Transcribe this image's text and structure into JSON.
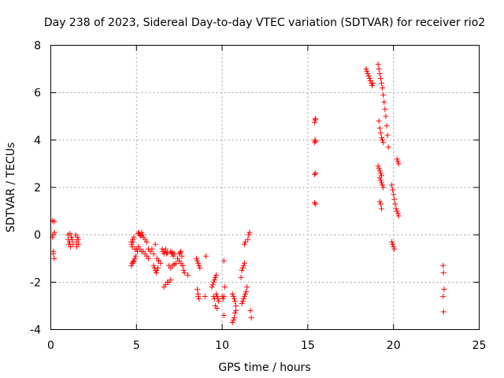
{
  "chart_data": {
    "type": "scatter",
    "title": "Day 238 of 2023, Sidereal Day-to-day VTEC variation (SDTVAR) for receiver rio2",
    "xlabel": "GPS time / hours",
    "ylabel": "SDTVAR / TECUs",
    "xlim": [
      0,
      25
    ],
    "ylim": [
      -4,
      8
    ],
    "x_ticks": [
      "0",
      "5",
      "10",
      "15",
      "20",
      "25"
    ],
    "y_ticks": [
      "-4",
      "-2",
      "0",
      "2",
      "4",
      "6",
      "8"
    ],
    "grid": true,
    "marker": "+",
    "color": "#ff0000",
    "series": [
      {
        "name": "SDTVAR",
        "x": [
          0.1,
          0.1,
          0.12,
          0.15,
          0.15,
          0.2,
          0.2,
          0.22,
          1.0,
          1.02,
          1.05,
          1.1,
          1.12,
          1.15,
          1.2,
          1.25,
          1.3,
          1.45,
          1.5,
          1.52,
          1.55,
          1.6,
          1.62,
          4.7,
          4.72,
          4.75,
          4.78,
          4.8,
          4.85,
          4.9,
          4.7,
          4.75,
          4.8,
          4.85,
          4.9,
          4.95,
          5.0,
          5.05,
          5.1,
          5.2,
          5.3,
          5.1,
          5.15,
          5.2,
          5.25,
          5.3,
          5.35,
          5.4,
          5.5,
          5.6,
          5.7,
          5.4,
          5.5,
          5.6,
          5.7,
          5.8,
          5.9,
          6.0,
          6.1,
          6.0,
          6.05,
          6.1,
          6.15,
          6.2,
          6.25,
          6.3,
          6.2,
          6.3,
          6.4,
          6.5,
          6.55,
          6.6,
          6.65,
          6.7,
          6.75,
          6.8,
          6.6,
          6.7,
          6.8,
          6.9,
          7.0,
          7.0,
          7.05,
          7.1,
          7.15,
          7.2,
          6.9,
          7.0,
          7.1,
          7.2,
          7.3,
          7.5,
          7.55,
          7.6,
          7.65,
          7.7,
          7.75,
          7.8,
          7.4,
          7.5,
          7.6,
          7.7,
          8.0,
          8.5,
          8.55,
          8.6,
          8.65,
          8.7,
          8.55,
          8.6,
          8.65,
          8.6,
          9.0,
          9.05,
          9.4,
          9.45,
          9.5,
          9.55,
          9.6,
          9.65,
          9.5,
          9.55,
          9.6,
          9.7,
          9.65,
          9.7,
          9.75,
          9.8,
          10.0,
          10.1,
          10.05,
          10.1,
          10.1,
          10.15,
          10.6,
          10.65,
          10.7,
          10.75,
          10.8,
          10.6,
          10.65,
          10.7,
          10.75,
          10.8,
          11.1,
          11.15,
          11.2,
          11.25,
          11.3,
          11.3,
          11.35,
          11.15,
          11.2,
          11.25,
          11.3,
          11.35,
          11.4,
          11.45,
          11.5,
          11.55,
          11.6,
          11.65,
          11.7,
          15.4,
          15.42,
          15.45,
          15.4,
          15.42,
          15.45,
          15.4,
          15.45,
          15.4,
          15.45,
          18.4,
          18.45,
          18.5,
          18.55,
          18.6,
          18.65,
          18.7,
          18.75,
          18.8,
          19.1,
          19.15,
          19.2,
          19.25,
          19.3,
          19.35,
          19.4,
          19.45,
          19.5,
          19.55,
          19.6,
          19.65,
          19.7,
          19.15,
          19.2,
          19.25,
          19.3,
          19.35,
          19.4,
          19.1,
          19.15,
          19.2,
          19.25,
          19.3,
          19.2,
          19.25,
          19.3,
          19.35,
          19.4,
          19.2,
          19.25,
          19.3,
          19.9,
          19.95,
          20.0,
          20.05,
          20.1,
          20.15,
          20.2,
          20.25,
          20.3,
          19.9,
          19.95,
          20.0,
          20.05,
          20.2,
          20.25,
          20.3,
          22.9,
          22.92,
          22.95,
          22.9,
          22.92
        ],
        "y": [
          0.6,
          -0.1,
          0.0,
          -0.7,
          -0.8,
          -1.0,
          0.55,
          0.1,
          0.0,
          -0.2,
          -0.4,
          -0.3,
          0.05,
          -0.5,
          -0.1,
          -0.2,
          -0.4,
          0.0,
          -0.3,
          -0.5,
          -0.1,
          -0.2,
          -0.4,
          -0.3,
          -0.4,
          -0.5,
          -0.2,
          -0.3,
          -0.1,
          -0.6,
          -1.3,
          -1.2,
          -1.15,
          -1.1,
          -1.0,
          -0.9,
          -0.6,
          -0.7,
          -0.5,
          -0.6,
          -0.7,
          0.05,
          0.1,
          0.0,
          -0.05,
          0.1,
          0.0,
          -0.1,
          -0.2,
          -0.3,
          -0.6,
          -0.7,
          -0.8,
          -0.9,
          -1.0,
          -0.7,
          -0.6,
          -0.8,
          -0.4,
          -1.3,
          -1.4,
          -1.5,
          -1.6,
          -1.5,
          -1.4,
          -1.1,
          -1.0,
          -1.1,
          -1.2,
          -0.6,
          -0.7,
          -0.8,
          -0.7,
          -0.6,
          -0.8,
          -0.75,
          -2.2,
          -2.1,
          -2.0,
          -2.0,
          -1.9,
          -0.7,
          -0.8,
          -0.75,
          -0.9,
          -0.8,
          -1.3,
          -1.4,
          -1.3,
          -1.25,
          -1.2,
          -0.8,
          -0.75,
          -0.7,
          -0.9,
          -1.3,
          -1.5,
          -1.6,
          -1.0,
          -1.1,
          -1.2,
          -1.3,
          -1.7,
          -1.0,
          -1.1,
          -1.2,
          -1.3,
          -1.4,
          -2.3,
          -2.6,
          -2.7,
          -2.5,
          -2.6,
          -0.9,
          -2.2,
          -2.1,
          -2.0,
          -1.9,
          -1.8,
          -1.7,
          -2.6,
          -2.7,
          -3.0,
          -3.1,
          -2.5,
          -2.6,
          -2.7,
          -2.8,
          -2.6,
          -3.4,
          -2.7,
          -2.6,
          -1.1,
          -2.2,
          -2.5,
          -2.6,
          -2.7,
          -2.8,
          -3.0,
          -3.7,
          -3.6,
          -3.5,
          -3.3,
          -3.2,
          -1.8,
          -1.5,
          -1.4,
          -1.3,
          -1.2,
          -0.4,
          -0.3,
          -2.9,
          -2.8,
          -2.7,
          -2.6,
          -2.5,
          -2.4,
          -2.2,
          -0.2,
          0.0,
          0.1,
          -3.2,
          -3.5,
          4.75,
          4.85,
          4.9,
          3.9,
          4.0,
          3.95,
          2.55,
          2.6,
          1.35,
          1.3,
          7.0,
          6.9,
          6.8,
          6.7,
          6.6,
          6.5,
          6.4,
          6.3,
          6.4,
          7.2,
          7.0,
          6.8,
          6.6,
          6.4,
          6.2,
          5.9,
          5.6,
          5.3,
          5.0,
          4.6,
          4.2,
          3.7,
          4.8,
          4.5,
          4.3,
          4.1,
          4.0,
          3.9,
          2.9,
          2.8,
          2.7,
          2.6,
          2.5,
          2.4,
          2.3,
          2.2,
          2.1,
          2.0,
          1.4,
          1.3,
          1.1,
          2.1,
          1.9,
          1.7,
          1.5,
          1.3,
          1.1,
          1.0,
          0.9,
          0.8,
          -0.3,
          -0.4,
          -0.5,
          -0.6,
          3.2,
          3.1,
          3.0,
          -1.3,
          -1.6,
          -2.3,
          -2.6,
          -3.25
        ]
      }
    ]
  }
}
